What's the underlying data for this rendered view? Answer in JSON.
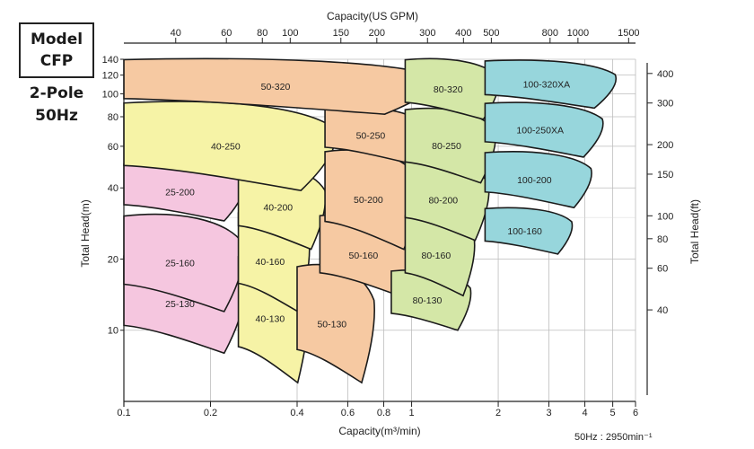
{
  "header": {
    "model_line1": "Model",
    "model_line2": "CFP",
    "poles": "2-Pole",
    "frequency": "50Hz"
  },
  "footnote": "50Hz : 2950min⁻¹",
  "chart_data": {
    "type": "area",
    "title": "",
    "x_axis": {
      "label": "Capacity(m³/min)",
      "scale": "log",
      "range": [
        0.1,
        6
      ],
      "ticks": [
        0.1,
        0.2,
        0.4,
        0.6,
        0.8,
        1,
        2,
        3,
        4,
        5,
        6
      ],
      "tick_labels": [
        "0.1",
        "0.2",
        "0.4",
        "0.6",
        "0.8",
        "1",
        "2",
        "3",
        "4",
        "5",
        "6"
      ]
    },
    "x2_axis": {
      "label": "Capacity(US GPM)",
      "scale": "log",
      "ticks": [
        40,
        60,
        80,
        100,
        150,
        200,
        300,
        400,
        500,
        800,
        1000,
        1500
      ],
      "tick_labels": [
        "40",
        "60",
        "80",
        "100",
        "150",
        "200",
        "300",
        "400",
        "500",
        "800",
        "1000",
        "1500"
      ]
    },
    "y_axis": {
      "label": "Total Head(m)",
      "scale": "log",
      "range": [
        5,
        140
      ],
      "ticks": [
        10,
        20,
        40,
        60,
        80,
        100,
        120,
        140
      ],
      "tick_labels": [
        "10",
        "20",
        "40",
        "60",
        "80",
        "100",
        "120",
        "140"
      ]
    },
    "y2_axis": {
      "label": "Total Head(ft)",
      "scale": "log",
      "ticks": [
        40,
        60,
        80,
        100,
        150,
        200,
        300,
        400
      ],
      "tick_labels": [
        "40",
        "60",
        "80",
        "100",
        "150",
        "200",
        "300",
        "400"
      ]
    },
    "grid": true,
    "colors": {
      "25": "#f5c6df",
      "40": "#f6f3a6",
      "50": "#f6c9a2",
      "80": "#d4e7a7",
      "100": "#97d6dc",
      "outline": "#1b1b1b"
    },
    "series": [
      {
        "name": "25-130",
        "family": "25",
        "q_range": [
          0.1,
          0.26
        ],
        "head_range": [
          8,
          21
        ]
      },
      {
        "name": "25-160",
        "family": "25",
        "q_range": [
          0.1,
          0.26
        ],
        "head_range": [
          12,
          31
        ]
      },
      {
        "name": "25-200",
        "family": "25",
        "q_range": [
          0.1,
          0.26
        ],
        "head_range": [
          29,
          51
        ]
      },
      {
        "name": "40-130",
        "family": "40",
        "q_range": [
          0.25,
          0.44
        ],
        "head_range": [
          6,
          21
        ]
      },
      {
        "name": "40-160",
        "family": "40",
        "q_range": [
          0.25,
          0.44
        ],
        "head_range": [
          12,
          32
        ]
      },
      {
        "name": "40-200",
        "family": "40",
        "q_range": [
          0.25,
          0.5
        ],
        "head_range": [
          22,
          50
        ]
      },
      {
        "name": "40-250",
        "family": "40",
        "q_range": [
          0.1,
          0.54
        ],
        "head_range": [
          39,
          93
        ]
      },
      {
        "name": "50-130",
        "family": "50",
        "q_range": [
          0.4,
          0.74
        ],
        "head_range": [
          6,
          19
        ]
      },
      {
        "name": "50-160",
        "family": "50",
        "q_range": [
          0.48,
          1.02
        ],
        "head_range": [
          14,
          31
        ]
      },
      {
        "name": "50-200",
        "family": "50",
        "q_range": [
          0.5,
          1.06
        ],
        "head_range": [
          22,
          58
        ]
      },
      {
        "name": "50-250",
        "family": "50",
        "q_range": [
          0.5,
          1.1
        ],
        "head_range": [
          51,
          88
        ]
      },
      {
        "name": "50-320",
        "family": "50",
        "q_range": [
          0.1,
          1.2
        ],
        "head_range": [
          82,
          141
        ]
      },
      {
        "name": "80-130",
        "family": "80",
        "q_range": [
          0.85,
          1.6
        ],
        "head_range": [
          10,
          18
        ]
      },
      {
        "name": "80-160",
        "family": "80",
        "q_range": [
          0.95,
          1.65
        ],
        "head_range": [
          14,
          31
        ]
      },
      {
        "name": "80-200",
        "family": "80",
        "q_range": [
          0.95,
          1.85
        ],
        "head_range": [
          24,
          53
        ]
      },
      {
        "name": "80-250",
        "family": "80",
        "q_range": [
          0.95,
          1.95
        ],
        "head_range": [
          42,
          87
        ]
      },
      {
        "name": "80-320",
        "family": "80",
        "q_range": [
          0.95,
          2.0
        ],
        "head_range": [
          78,
          141
        ]
      },
      {
        "name": "100-160",
        "family": "100",
        "q_range": [
          1.8,
          3.6
        ],
        "head_range": [
          21,
          33
        ]
      },
      {
        "name": "100-200",
        "family": "100",
        "q_range": [
          1.8,
          4.2
        ],
        "head_range": [
          33,
          57
        ]
      },
      {
        "name": "100-250XA",
        "family": "100",
        "q_range": [
          1.8,
          4.6
        ],
        "head_range": [
          54,
          92
        ]
      },
      {
        "name": "100-320XA",
        "family": "100",
        "q_range": [
          1.8,
          5.1
        ],
        "head_range": [
          87,
          139
        ]
      }
    ]
  }
}
